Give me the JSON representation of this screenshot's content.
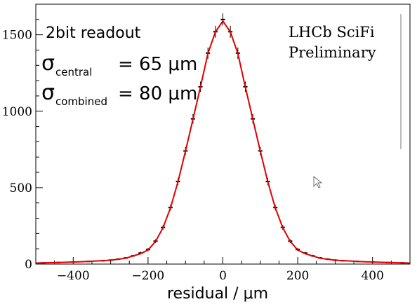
{
  "chart_data": {
    "type": "scatter",
    "title": "",
    "xlabel": "residual / μm",
    "ylabel": "",
    "xlim": [
      -500,
      500
    ],
    "ylim": [
      0,
      1700
    ],
    "xticks": [
      -400,
      -200,
      0,
      200,
      400
    ],
    "xtick_labels": [
      "−400",
      "−200",
      "0",
      "200",
      "400"
    ],
    "yticks": [
      0,
      500,
      1000,
      1500
    ],
    "ytick_labels": [
      "0",
      "500",
      "1000",
      "1500"
    ],
    "grid": false,
    "annotations": {
      "readout": "2bit readout",
      "sigma_central_symbol": "σ",
      "sigma_central_sub": "central",
      "sigma_central_value": "= 65 μm",
      "sigma_combined_symbol": "σ",
      "sigma_combined_sub": "combined",
      "sigma_combined_value": "= 80 μm",
      "experiment_line1": "LHCb SciFi",
      "experiment_line2": "Preliminary"
    },
    "series": [
      {
        "kind": "data-points-with-errors",
        "color": "#000000",
        "x": [
          -480,
          -440,
          -400,
          -360,
          -320,
          -300,
          -280,
          -260,
          -240,
          -220,
          -200,
          -180,
          -160,
          -140,
          -120,
          -100,
          -80,
          -60,
          -40,
          -20,
          0,
          20,
          40,
          60,
          80,
          100,
          120,
          140,
          160,
          180,
          200,
          220,
          240,
          260,
          280,
          300,
          320,
          360,
          400,
          440,
          480
        ],
        "y": [
          8,
          10,
          14,
          17,
          22,
          26,
          32,
          40,
          54,
          72,
          95,
          150,
          240,
          370,
          540,
          740,
          950,
          1160,
          1380,
          1520,
          1600,
          1520,
          1380,
          1160,
          950,
          740,
          540,
          370,
          240,
          150,
          95,
          72,
          54,
          40,
          32,
          26,
          22,
          17,
          14,
          10,
          8
        ],
        "err": [
          3,
          3,
          4,
          4,
          5,
          5,
          6,
          6,
          7,
          9,
          10,
          12,
          16,
          19,
          23,
          27,
          31,
          34,
          37,
          39,
          40,
          39,
          37,
          34,
          31,
          27,
          23,
          19,
          16,
          12,
          10,
          9,
          7,
          6,
          6,
          5,
          5,
          4,
          4,
          3,
          3
        ]
      },
      {
        "kind": "fit",
        "color": "#e00000",
        "x": [
          -500,
          -460,
          -420,
          -380,
          -340,
          -300,
          -260,
          -220,
          -200,
          -180,
          -160,
          -140,
          -120,
          -100,
          -80,
          -60,
          -40,
          -20,
          0,
          20,
          40,
          60,
          80,
          100,
          120,
          140,
          160,
          180,
          200,
          220,
          260,
          300,
          340,
          380,
          420,
          460,
          500
        ],
        "y": [
          7,
          9,
          12,
          15,
          20,
          25,
          38,
          68,
          92,
          148,
          238,
          368,
          538,
          738,
          948,
          1158,
          1378,
          1518,
          1590,
          1518,
          1378,
          1158,
          948,
          738,
          538,
          368,
          238,
          148,
          92,
          68,
          38,
          25,
          20,
          15,
          12,
          9,
          7
        ]
      }
    ]
  }
}
